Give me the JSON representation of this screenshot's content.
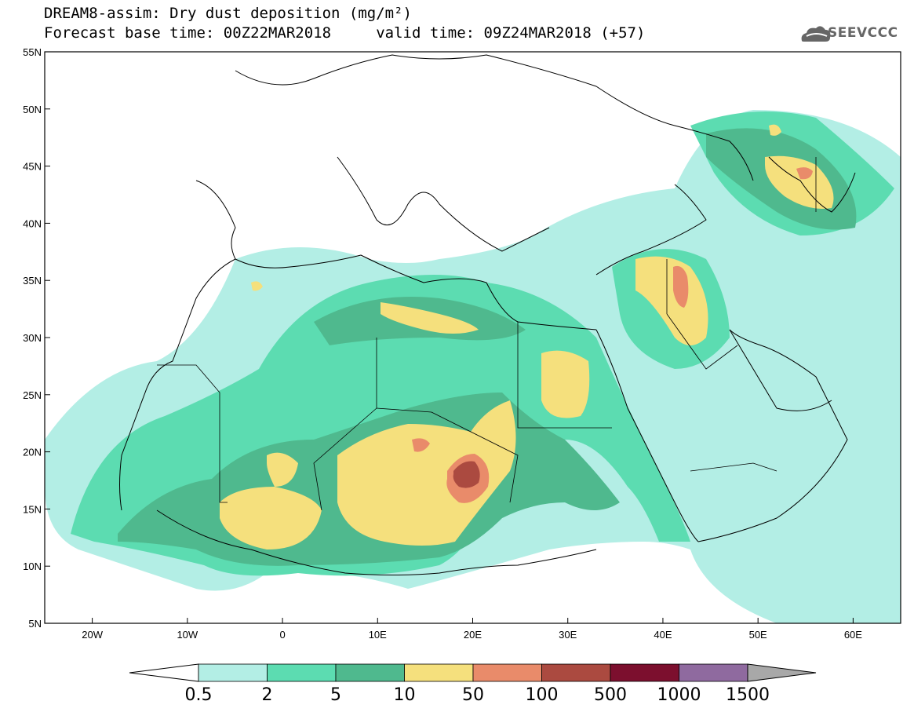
{
  "title": {
    "line1": "DREAM8-assim: Dry dust deposition (mg/m²)",
    "line2": "Forecast base time: 00Z22MAR2018     valid time: 09Z24MAR2018 (+57)"
  },
  "logo": {
    "text": "SEEVCCC",
    "icon": "cloud-icon"
  },
  "map": {
    "projection": "lat-lon",
    "lon_range": [
      -25,
      65
    ],
    "lat_range": [
      5,
      55
    ],
    "lat_ticks": [
      "55N",
      "50N",
      "45N",
      "40N",
      "35N",
      "30N",
      "25N",
      "20N",
      "15N",
      "10N",
      "5N"
    ],
    "lon_ticks": [
      "20W",
      "10W",
      "0",
      "10E",
      "20E",
      "30E",
      "40E",
      "50E",
      "60E"
    ]
  },
  "colorbar": {
    "labels": [
      "0.5",
      "2",
      "5",
      "10",
      "50",
      "100",
      "500",
      "1000",
      "1500"
    ],
    "colors": [
      "#b3eee5",
      "#5cdcb1",
      "#4fb98e",
      "#f5e07d",
      "#e98b6a",
      "#ab4a40",
      "#7c0f2e",
      "#8f6a9f",
      "#a8a8a8"
    ]
  }
}
